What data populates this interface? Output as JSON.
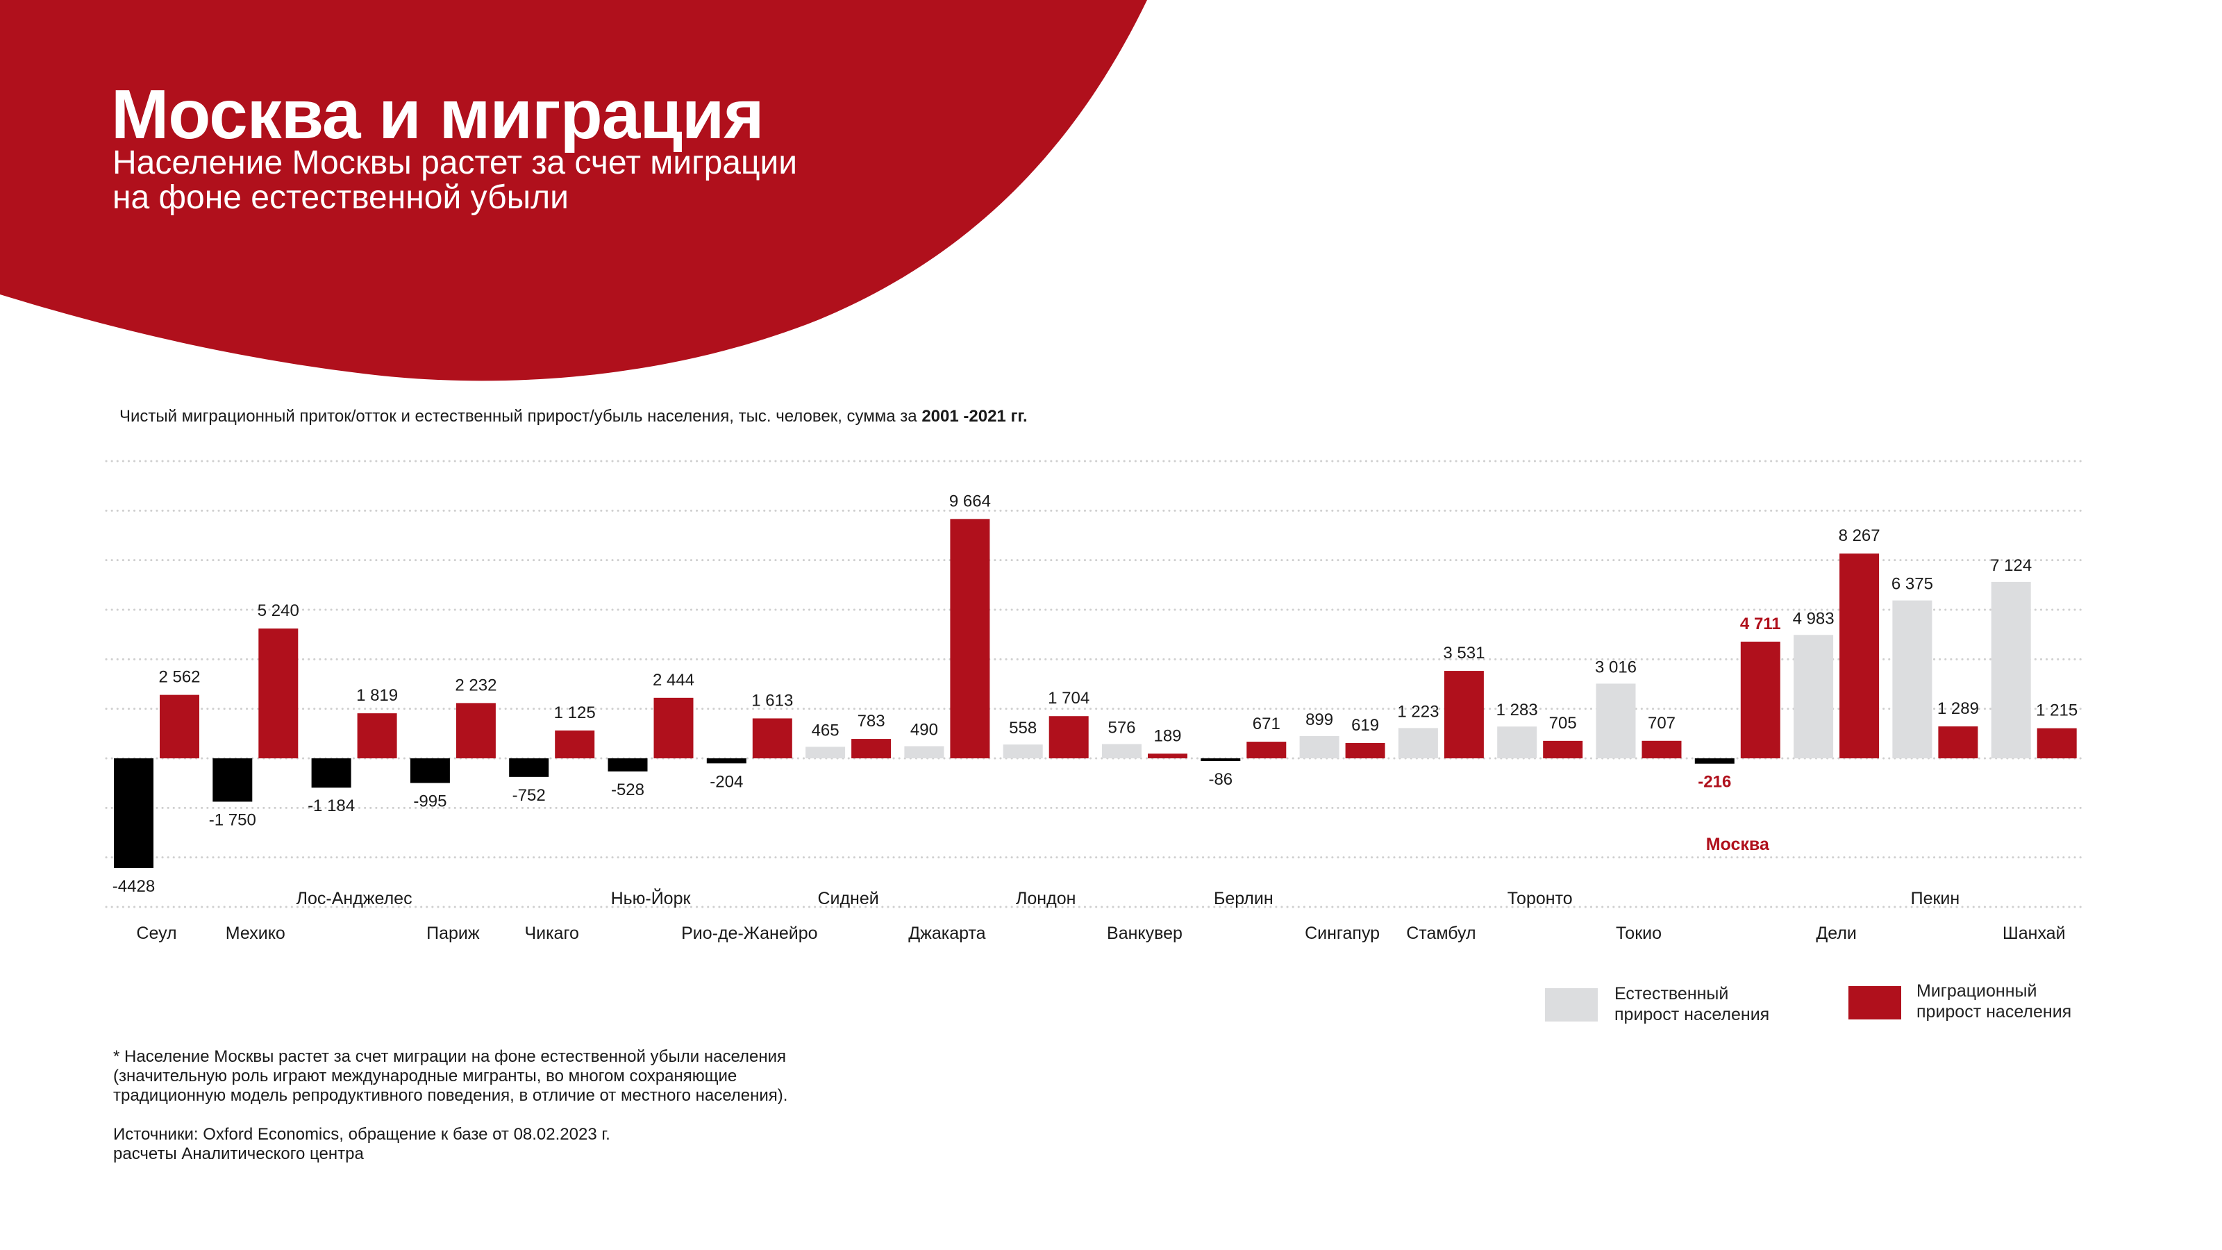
{
  "header": {
    "title": "Москва и миграция",
    "subtitle_line1": "Население Москвы растет за счет миграции",
    "subtitle_line2": "на фоне естественной убыли"
  },
  "colors": {
    "brand_red": "#b0101c",
    "natural_gray": "#dcdddf",
    "negative_black": "#000000",
    "highlight_text": "#b0101c"
  },
  "chart_data": {
    "type": "bar",
    "title_prefix": "Чистый миграционный приток/отток и естественный прирост/убыль населения, тыс. человек, сумма за ",
    "title_bold": "2001 -2021 гг.",
    "xlabel": "",
    "ylabel": "",
    "ylim": [
      -6000,
      12000
    ],
    "grid": true,
    "grid_step": 2000,
    "categories": [
      "Сеул",
      "Мехико",
      "Лос-Анджелес",
      "Париж",
      "Чикаго",
      "Нью-Йорк",
      "Рио-де-Жанейро",
      "Сидней",
      "Джакарта",
      "Лондон",
      "Ванкувер",
      "Берлин",
      "Сингапур",
      "Стамбул",
      "Торонто",
      "Токио",
      "Москва",
      "Дели",
      "Пекин",
      "Шанхай"
    ],
    "label_row": [
      "lower",
      "lower",
      "upper",
      "lower",
      "lower",
      "upper",
      "lower",
      "upper",
      "lower",
      "upper",
      "lower",
      "upper",
      "lower",
      "lower",
      "upper",
      "lower",
      "highlight",
      "lower",
      "upper",
      "lower"
    ],
    "highlight_category": "Москва",
    "series": [
      {
        "name": "Естественный прирост населения",
        "values": [
          -4428,
          -1750,
          -1184,
          -995,
          -752,
          -528,
          -204,
          465,
          490,
          558,
          576,
          -86,
          899,
          1223,
          1283,
          3016,
          -216,
          4983,
          6375,
          7124
        ],
        "labels": [
          "-4428",
          "-1 750",
          "-1 184",
          "-995",
          "-752",
          "-528",
          "-204",
          "465",
          "490",
          "558",
          "576",
          "-86",
          "899",
          "1 223",
          "1 283",
          "3 016",
          "-216",
          "4 983",
          "6 375",
          "7 124"
        ]
      },
      {
        "name": "Миграционный прирост населения",
        "values": [
          2562,
          5240,
          1819,
          2232,
          1125,
          2444,
          1613,
          783,
          9664,
          1704,
          189,
          671,
          619,
          3531,
          705,
          707,
          4711,
          8267,
          1289,
          1215
        ],
        "labels": [
          "2 562",
          "5 240",
          "1 819",
          "2 232",
          "1 125",
          "2 444",
          "1 613",
          "783",
          "9 664",
          "1 704",
          "189",
          "671",
          "619",
          "3 531",
          "705",
          "707",
          "4 711",
          "8 267",
          "1 289",
          "1 215"
        ]
      }
    ],
    "legend": {
      "position": "bottom-right",
      "natural_line1": "Естественный",
      "natural_line2": "прирост населения",
      "migration_line1": "Миграционный",
      "migration_line2": "прирост населения"
    }
  },
  "footnote": {
    "line1": "* Население Москвы растет за счет миграции на фоне естественной убыли населения",
    "line2": "(значительную роль играют международные мигранты, во многом сохраняющие",
    "line3": "традиционную модель репродуктивного поведения, в отличие от местного населения).",
    "source_line1": "Источники: Oxford Economics, обращение к базе от 08.02.2023 г.",
    "source_line2": "расчеты Аналитического центра"
  }
}
